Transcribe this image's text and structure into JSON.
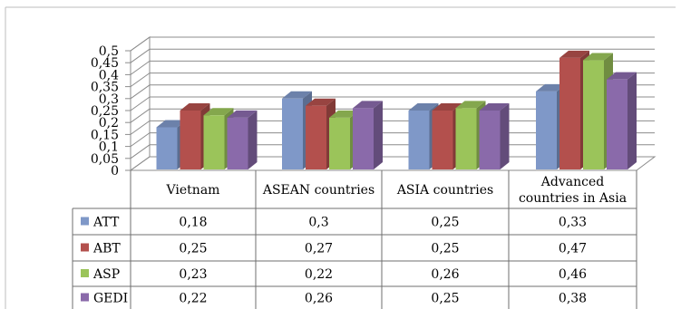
{
  "chart_data": {
    "type": "bar",
    "style": "3d-clustered-column-with-data-table",
    "categories": [
      "Vietnam",
      "ASEAN countries",
      "ASIA countries",
      "Advanced countries in Asia"
    ],
    "category_lines": [
      [
        "Vietnam"
      ],
      [
        "ASEAN countries"
      ],
      [
        "ASIA countries"
      ],
      [
        "Advanced",
        "countries in Asia"
      ]
    ],
    "series": [
      {
        "name": "ATT",
        "color": "#7f98c8",
        "values_text": [
          "0,18",
          "0,3",
          "0,25",
          "0,33"
        ],
        "values": [
          0.18,
          0.3,
          0.25,
          0.33
        ]
      },
      {
        "name": "ABT",
        "color": "#b3504d",
        "values_text": [
          "0,25",
          "0,27",
          "0,25",
          "0,47"
        ],
        "values": [
          0.25,
          0.27,
          0.25,
          0.47
        ]
      },
      {
        "name": "ASP",
        "color": "#9bc45a",
        "values_text": [
          "0,23",
          "0,22",
          "0,26",
          "0,46"
        ],
        "values": [
          0.23,
          0.22,
          0.26,
          0.46
        ]
      },
      {
        "name": "GEDI",
        "color": "#8a6aaa",
        "values_text": [
          "0,22",
          "0,26",
          "0,25",
          "0,38"
        ],
        "values": [
          0.22,
          0.26,
          0.25,
          0.38
        ]
      }
    ],
    "y_ticks": [
      "0",
      "0,05",
      "0,1",
      "0,15",
      "0,2",
      "0,25",
      "0,3",
      "0,35",
      "0,4",
      "0,45",
      "0,5"
    ],
    "ylim": [
      0,
      0.5
    ],
    "grid": true,
    "legend": "data-table"
  }
}
